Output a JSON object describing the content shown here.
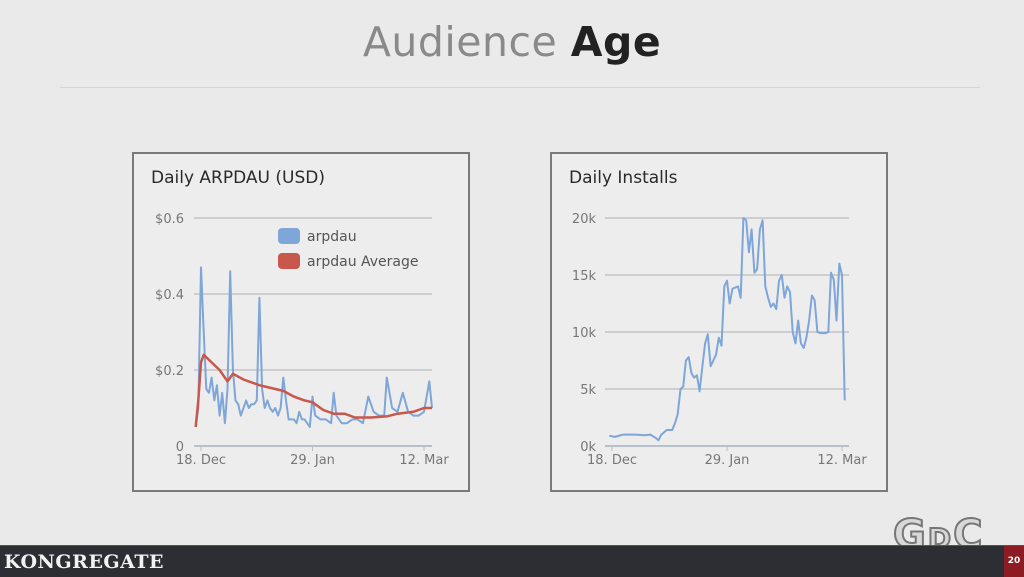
{
  "slide": {
    "title_light": "Audience",
    "title_bold": "Age",
    "footer_brand": "KONGREGATE",
    "page_number": "20",
    "event_logo": "GDC"
  },
  "chart_data": [
    {
      "type": "line",
      "title": "Daily ARPDAU (USD)",
      "xlabel": "",
      "ylabel": "",
      "x_ticks": [
        "18. Dec",
        "29. Jan",
        "12. Mar"
      ],
      "y_ticks": [
        "0",
        "$0.2",
        "$0.4",
        "$0.6"
      ],
      "y_tick_values": [
        0,
        0.2,
        0.4,
        0.6
      ],
      "ylim": [
        0,
        0.6
      ],
      "grid": true,
      "legend": "top-right",
      "series": [
        {
          "name": "arpdau",
          "color": "#7ea6d8",
          "x": [
            "Dec 16",
            "Dec 17",
            "Dec 18",
            "Dec 19",
            "Dec 20",
            "Dec 21",
            "Dec 22",
            "Dec 23",
            "Dec 24",
            "Dec 25",
            "Dec 26",
            "Dec 27",
            "Dec 28",
            "Dec 29",
            "Dec 30",
            "Dec 31",
            "Jan 1",
            "Jan 2",
            "Jan 3",
            "Jan 4",
            "Jan 5",
            "Jan 6",
            "Jan 7",
            "Jan 8",
            "Jan 9",
            "Jan 10",
            "Jan 11",
            "Jan 12",
            "Jan 13",
            "Jan 14",
            "Jan 15",
            "Jan 16",
            "Jan 17",
            "Jan 18",
            "Jan 19",
            "Jan 20",
            "Jan 21",
            "Jan 22",
            "Jan 23",
            "Jan 24",
            "Jan 25",
            "Jan 26",
            "Jan 27",
            "Jan 28",
            "Jan 29",
            "Jan 30",
            "Feb 1",
            "Feb 3",
            "Feb 5",
            "Feb 6",
            "Feb 7",
            "Feb 9",
            "Feb 11",
            "Feb 13",
            "Feb 15",
            "Feb 17",
            "Feb 19",
            "Feb 21",
            "Feb 23",
            "Feb 25",
            "Feb 26",
            "Feb 28",
            "Mar 2",
            "Mar 4",
            "Mar 6",
            "Mar 8",
            "Mar 10",
            "Mar 12",
            "Mar 14",
            "Mar 15"
          ],
          "y": [
            0.05,
            0.1,
            0.47,
            0.3,
            0.15,
            0.14,
            0.18,
            0.12,
            0.16,
            0.08,
            0.14,
            0.06,
            0.15,
            0.46,
            0.2,
            0.12,
            0.11,
            0.08,
            0.1,
            0.12,
            0.1,
            0.11,
            0.11,
            0.12,
            0.39,
            0.15,
            0.1,
            0.12,
            0.1,
            0.09,
            0.1,
            0.08,
            0.1,
            0.18,
            0.12,
            0.07,
            0.07,
            0.07,
            0.06,
            0.09,
            0.07,
            0.07,
            0.06,
            0.05,
            0.13,
            0.08,
            0.07,
            0.07,
            0.06,
            0.14,
            0.08,
            0.06,
            0.06,
            0.07,
            0.07,
            0.06,
            0.13,
            0.09,
            0.08,
            0.08,
            0.18,
            0.1,
            0.09,
            0.14,
            0.09,
            0.08,
            0.08,
            0.09,
            0.17,
            0.1
          ]
        },
        {
          "name": "arpdau Average",
          "color": "#c8574c",
          "x": [
            "Dec 16",
            "Dec 17",
            "Dec 18",
            "Dec 19",
            "Dec 22",
            "Dec 25",
            "Dec 28",
            "Dec 30",
            "Jan 3",
            "Jan 7",
            "Jan 9",
            "Jan 12",
            "Jan 15",
            "Jan 18",
            "Jan 22",
            "Jan 26",
            "Jan 29",
            "Feb 2",
            "Feb 6",
            "Feb 10",
            "Feb 14",
            "Feb 20",
            "Feb 26",
            "Mar 2",
            "Mar 8",
            "Mar 12",
            "Mar 15"
          ],
          "y": [
            0.05,
            0.12,
            0.22,
            0.24,
            0.22,
            0.2,
            0.17,
            0.19,
            0.175,
            0.165,
            0.16,
            0.155,
            0.15,
            0.145,
            0.13,
            0.12,
            0.115,
            0.095,
            0.085,
            0.085,
            0.075,
            0.075,
            0.078,
            0.085,
            0.09,
            0.1,
            0.1
          ]
        }
      ]
    },
    {
      "type": "line",
      "title": "Daily Installs",
      "xlabel": "",
      "ylabel": "",
      "x_ticks": [
        "18. Dec",
        "29. Jan",
        "12. Mar"
      ],
      "y_ticks": [
        "0k",
        "5k",
        "10k",
        "15k",
        "20k"
      ],
      "y_tick_values": [
        0,
        5000,
        10000,
        15000,
        20000
      ],
      "ylim": [
        0,
        20000
      ],
      "grid": true,
      "series": [
        {
          "color": "#7ea6d8",
          "x": [
            "Dec 17",
            "Dec 19",
            "Dec 22",
            "Dec 26",
            "Dec 30",
            "Jan 1",
            "Jan 3",
            "Jan 4",
            "Jan 5",
            "Jan 7",
            "Jan 9",
            "Jan 10",
            "Jan 11",
            "Jan 12",
            "Jan 13",
            "Jan 14",
            "Jan 15",
            "Jan 16",
            "Jan 17",
            "Jan 18",
            "Jan 19",
            "Jan 20",
            "Jan 21",
            "Jan 22",
            "Jan 23",
            "Jan 24",
            "Jan 25",
            "Jan 26",
            "Jan 27",
            "Jan 28",
            "Jan 29",
            "Jan 30",
            "Jan 31",
            "Feb 2",
            "Feb 3",
            "Feb 4",
            "Feb 5",
            "Feb 6",
            "Feb 7",
            "Feb 8",
            "Feb 9",
            "Feb 10",
            "Feb 11",
            "Feb 12",
            "Feb 13",
            "Feb 14",
            "Feb 15",
            "Feb 16",
            "Feb 17",
            "Feb 18",
            "Feb 19",
            "Feb 20",
            "Feb 21",
            "Feb 22",
            "Feb 23",
            "Feb 24",
            "Feb 25",
            "Feb 26",
            "Feb 27",
            "Feb 28",
            "Mar 1",
            "Mar 2",
            "Mar 3",
            "Mar 4",
            "Mar 6",
            "Mar 7",
            "Mar 8",
            "Mar 9",
            "Mar 10",
            "Mar 11",
            "Mar 12",
            "Mar 13"
          ],
          "y": [
            900,
            800,
            1000,
            1000,
            950,
            1000,
            700,
            500,
            1000,
            1400,
            1400,
            2000,
            2800,
            5000,
            5200,
            7500,
            7800,
            6400,
            6000,
            6200,
            4800,
            7000,
            9000,
            9800,
            7000,
            7500,
            8000,
            9500,
            8800,
            14000,
            14500,
            12500,
            13800,
            14000,
            13000,
            20000,
            19800,
            17000,
            19000,
            15200,
            15500,
            19000,
            19800,
            14000,
            13000,
            12200,
            12500,
            12000,
            14500,
            15000,
            13000,
            14000,
            13500,
            10000,
            9000,
            11000,
            9000,
            8600,
            9500,
            11000,
            13200,
            12800,
            10000,
            9900,
            9900,
            10000,
            15200,
            14600,
            11000,
            16000,
            15000,
            4000
          ]
        }
      ]
    }
  ]
}
